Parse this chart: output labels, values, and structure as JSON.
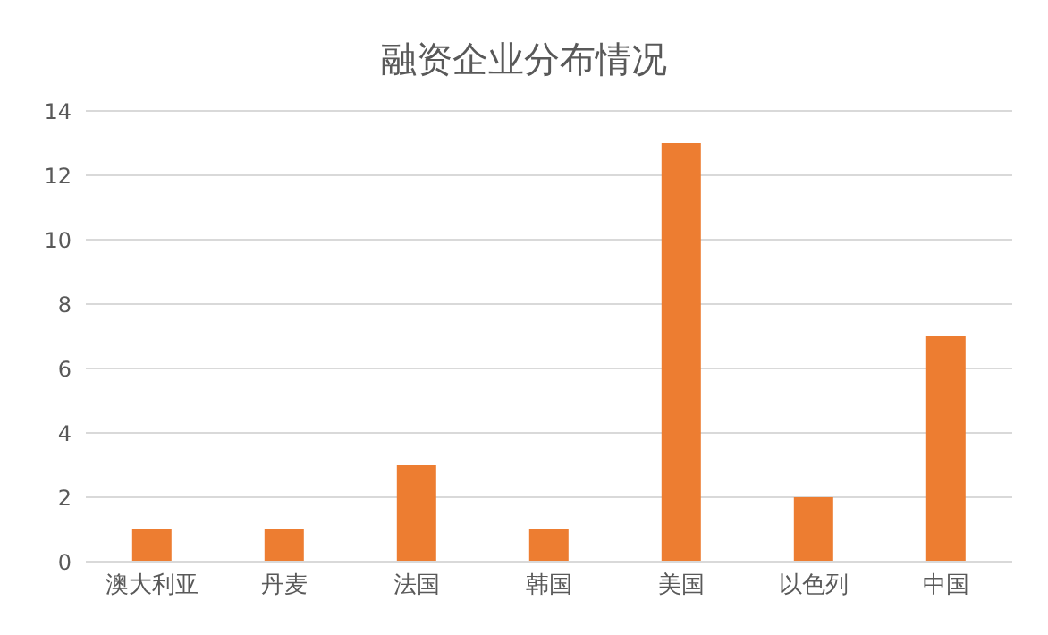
{
  "chart_data": {
    "type": "bar",
    "title": "融资企业分布情况",
    "categories": [
      "澳大利亚",
      "丹麦",
      "法国",
      "韩国",
      "美国",
      "以色列",
      "中国"
    ],
    "values": [
      1,
      1,
      3,
      1,
      13,
      2,
      7
    ],
    "color": "#ed7d31",
    "ylim": [
      0,
      14
    ],
    "yticks": [
      0,
      2,
      4,
      6,
      8,
      10,
      12,
      14
    ],
    "grid": "y"
  }
}
